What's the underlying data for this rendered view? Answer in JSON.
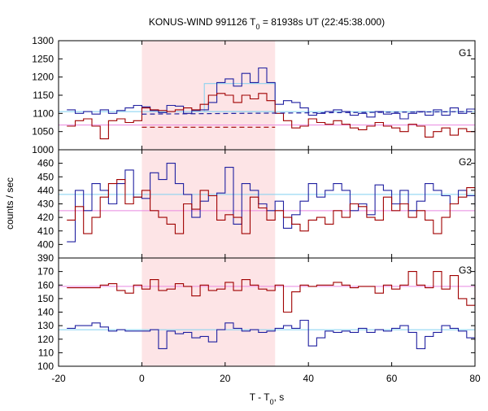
{
  "chart_data": {
    "type": "line",
    "title": "KONUS-WIND 991126 T",
    "title_sub": "0",
    "title_rest": " = 81938s UT (22:45:38.000)",
    "xlabel": "T - T",
    "xlabel_sub": "0",
    "xlabel_rest": ", s",
    "ylabel": "counts / sec",
    "xlim": [
      -20,
      80
    ],
    "x_ticks": [
      -20,
      0,
      20,
      40,
      60,
      80
    ],
    "highlight_interval": [
      0,
      32
    ],
    "colors": {
      "red": "#a00000",
      "blue": "#2020a0",
      "cyan": "#80d0f0",
      "pink": "#e888e0",
      "shade": "#fde4e6"
    },
    "panels": [
      {
        "label": "G1",
        "ylim": [
          1000,
          1300
        ],
        "y_ticks": [
          1000,
          1050,
          1100,
          1150,
          1200,
          1250,
          1300
        ],
        "blue_background": 1105,
        "red_background": 1068,
        "blue_peak_level": 1182,
        "blue_peak_interval": [
          15,
          32
        ],
        "series": [
          {
            "color": "blue",
            "x": [
              -18,
              -16,
              -14,
              -12,
              -10,
              -8,
              -6,
              -4,
              -2,
              0,
              2,
              4,
              6,
              8,
              10,
              12,
              14,
              16,
              18,
              20,
              22,
              24,
              26,
              28,
              30,
              32,
              34,
              36,
              38,
              40,
              42,
              44,
              46,
              48,
              50,
              52,
              54,
              56,
              58,
              60,
              62,
              64,
              66,
              68,
              70,
              72,
              74,
              76,
              78,
              80
            ],
            "y": [
              1110,
              1100,
              1105,
              1098,
              1110,
              1100,
              1108,
              1115,
              1122,
              1118,
              1108,
              1102,
              1122,
              1120,
              1100,
              1108,
              1110,
              1130,
              1185,
              1195,
              1175,
              1210,
              1185,
              1225,
              1185,
              1125,
              1135,
              1130,
              1115,
              1095,
              1100,
              1105,
              1110,
              1105,
              1095,
              1100,
              1090,
              1105,
              1098,
              1100,
              1085,
              1100,
              1105,
              1095,
              1110,
              1095,
              1115,
              1100,
              1112,
              1090
            ]
          },
          {
            "color": "red",
            "x": [
              -18,
              -16,
              -14,
              -12,
              -10,
              -8,
              -6,
              -4,
              -2,
              0,
              2,
              4,
              6,
              8,
              10,
              12,
              14,
              16,
              18,
              20,
              22,
              24,
              26,
              28,
              30,
              32,
              34,
              36,
              38,
              40,
              42,
              44,
              46,
              48,
              50,
              52,
              54,
              56,
              58,
              60,
              62,
              64,
              66,
              68,
              70,
              72,
              74,
              76,
              78,
              80
            ],
            "y": [
              1065,
              1080,
              1085,
              1065,
              1030,
              1080,
              1085,
              1075,
              1080,
              1115,
              1110,
              1108,
              1105,
              1110,
              1115,
              1110,
              1125,
              1150,
              1155,
              1150,
              1130,
              1150,
              1140,
              1155,
              1135,
              1100,
              1080,
              1060,
              1065,
              1085,
              1075,
              1070,
              1080,
              1070,
              1060,
              1055,
              1065,
              1075,
              1065,
              1060,
              1050,
              1070,
              1065,
              1035,
              1050,
              1060,
              1040,
              1058,
              1050,
              1060
            ]
          }
        ],
        "dashed": [
          {
            "color": "blue",
            "x": [
              0,
              80
            ],
            "y": [
              1098,
              1105
            ]
          },
          {
            "color": "red",
            "x": [
              0,
              32
            ],
            "y": [
              1062,
              1062
            ]
          }
        ]
      },
      {
        "label": "G2",
        "ylim": [
          390,
          470
        ],
        "y_ticks": [
          390,
          400,
          410,
          420,
          430,
          440,
          450,
          460
        ],
        "blue_background": 437,
        "red_background": 425,
        "series": [
          {
            "color": "blue",
            "x": [
              -18,
              -16,
              -14,
              -12,
              -10,
              -8,
              -6,
              -4,
              -2,
              0,
              2,
              4,
              6,
              8,
              10,
              12,
              14,
              16,
              18,
              20,
              22,
              24,
              26,
              28,
              30,
              32,
              34,
              36,
              38,
              40,
              42,
              44,
              46,
              48,
              50,
              52,
              54,
              56,
              58,
              60,
              62,
              64,
              66,
              68,
              70,
              72,
              74,
              76,
              78,
              80
            ],
            "y": [
              402,
              440,
              425,
              445,
              440,
              430,
              445,
              455,
              435,
              434,
              453,
              448,
              460,
              445,
              437,
              420,
              432,
              436,
              438,
              457,
              415,
              445,
              440,
              430,
              425,
              432,
              412,
              422,
              432,
              445,
              435,
              440,
              445,
              440,
              425,
              430,
              422,
              444,
              440,
              430,
              440,
              425,
              432,
              445,
              440,
              436,
              430,
              440,
              436,
              428
            ]
          },
          {
            "color": "red",
            "x": [
              -18,
              -16,
              -14,
              -12,
              -10,
              -8,
              -6,
              -4,
              -2,
              0,
              2,
              4,
              6,
              8,
              10,
              12,
              14,
              16,
              18,
              20,
              22,
              24,
              26,
              28,
              30,
              32,
              34,
              36,
              38,
              40,
              42,
              44,
              46,
              48,
              50,
              52,
              54,
              56,
              58,
              60,
              62,
              64,
              66,
              68,
              70,
              72,
              74,
              76,
              78,
              80
            ],
            "y": [
              418,
              428,
              408,
              420,
              435,
              445,
              448,
              430,
              435,
              440,
              425,
              420,
              415,
              408,
              430,
              426,
              440,
              436,
              418,
              422,
              420,
              408,
              435,
              427,
              418,
              425,
              420,
              415,
              410,
              418,
              420,
              415,
              425,
              420,
              430,
              428,
              420,
              418,
              435,
              425,
              430,
              420,
              425,
              418,
              408,
              420,
              430,
              435,
              442,
              436
            ]
          }
        ]
      },
      {
        "label": "G3",
        "ylim": [
          100,
          180
        ],
        "y_ticks": [
          100,
          110,
          120,
          130,
          140,
          150,
          160,
          170
        ],
        "blue_background": 127,
        "red_background": 159,
        "series": [
          {
            "color": "blue",
            "x": [
              -18,
              -16,
              -14,
              -12,
              -10,
              -8,
              -6,
              -4,
              -2,
              0,
              2,
              4,
              6,
              8,
              10,
              12,
              14,
              16,
              18,
              20,
              22,
              24,
              26,
              28,
              30,
              32,
              34,
              36,
              38,
              40,
              42,
              44,
              46,
              48,
              50,
              52,
              54,
              56,
              58,
              60,
              62,
              64,
              66,
              68,
              70,
              72,
              74,
              76,
              78,
              80
            ],
            "y": [
              128,
              130,
              130,
              132,
              129,
              126,
              127,
              126,
              126,
              126,
              127,
              113,
              126,
              124,
              125,
              121,
              122,
              118,
              127,
              132,
              128,
              126,
              127,
              125,
              126,
              128,
              130,
              128,
              134,
              115,
              121,
              126,
              125,
              126,
              125,
              128,
              125,
              127,
              126,
              128,
              130,
              125,
              113,
              122,
              125,
              130,
              128,
              126,
              121,
              119
            ]
          },
          {
            "color": "red",
            "x": [
              -18,
              -16,
              -14,
              -12,
              -10,
              -8,
              -6,
              -4,
              -2,
              0,
              2,
              4,
              6,
              8,
              10,
              12,
              14,
              16,
              18,
              20,
              22,
              24,
              26,
              28,
              30,
              32,
              34,
              36,
              38,
              40,
              42,
              44,
              46,
              48,
              50,
              52,
              54,
              56,
              58,
              60,
              62,
              64,
              66,
              68,
              70,
              72,
              74,
              76,
              78,
              80
            ],
            "y": [
              158,
              158,
              158,
              158,
              160,
              161,
              156,
              154,
              160,
              157,
              164,
              156,
              157,
              161,
              159,
              152,
              160,
              156,
              157,
              162,
              156,
              164,
              160,
              157,
              156,
              160,
              140,
              155,
              160,
              159,
              160,
              160,
              162,
              160,
              158,
              159,
              159,
              154,
              160,
              157,
              160,
              170,
              160,
              158,
              170,
              157,
              167,
              150,
              145,
              160
            ]
          }
        ]
      }
    ]
  }
}
